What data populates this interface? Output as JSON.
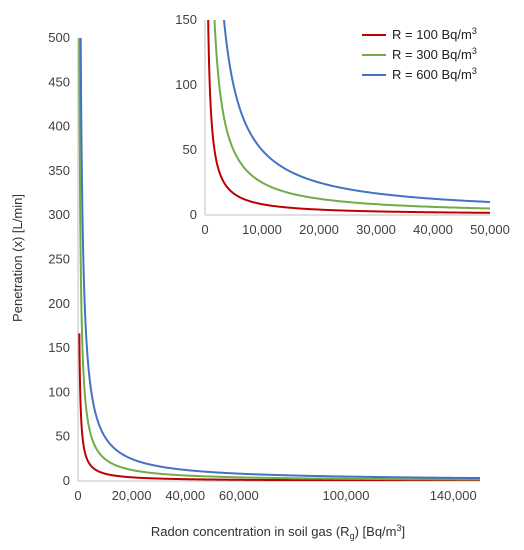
{
  "chart_data": [
    {
      "id": "main",
      "type": "line",
      "xlabel": "Radon concentration in soil gas (Rg) [Bq/m3]",
      "ylabel": "Penetration (x) [L/min]",
      "xlim": [
        0,
        150000
      ],
      "ylim": [
        0,
        500
      ],
      "x_ticks": [
        0,
        20000,
        40000,
        60000,
        100000,
        140000
      ],
      "x_tick_labels": [
        "0",
        "20,000",
        "40,000",
        "60,000",
        "100,000",
        "140,000"
      ],
      "y_ticks": [
        0,
        50,
        100,
        150,
        200,
        250,
        300,
        350,
        400,
        450,
        500
      ],
      "y_tick_labels": [
        "0",
        "50",
        "100",
        "150",
        "200",
        "250",
        "300",
        "350",
        "400",
        "450",
        "500"
      ],
      "grid": false,
      "series": [
        {
          "name": "R = 100 Bq/m3",
          "color": "#c00000",
          "k": 83333,
          "x_start": 500
        },
        {
          "name": "R = 300 Bq/m3",
          "color": "#70ad47",
          "k": 250000,
          "x_start": 500
        },
        {
          "name": "R = 600 Bq/m3",
          "color": "#4472c4",
          "k": 500000,
          "x_start": 1000
        }
      ]
    },
    {
      "id": "inset",
      "type": "line",
      "xlim": [
        0,
        50000
      ],
      "ylim": [
        0,
        150
      ],
      "x_ticks": [
        0,
        10000,
        20000,
        30000,
        40000,
        50000
      ],
      "x_tick_labels": [
        "0",
        "10,000",
        "20,000",
        "30,000",
        "40,000",
        "50,000"
      ],
      "y_ticks": [
        0,
        50,
        100,
        150
      ],
      "y_tick_labels": [
        "0",
        "50",
        "100",
        "150"
      ],
      "grid": false,
      "legend_position": "top-right",
      "series": [
        {
          "name": "R = 100 Bq/m3",
          "color": "#c00000",
          "k": 83333
        },
        {
          "name": "R = 300 Bq/m3",
          "color": "#70ad47",
          "k": 250000
        },
        {
          "name": "R = 600 Bq/m3",
          "color": "#4472c4",
          "k": 500000
        }
      ]
    }
  ],
  "legend": {
    "items": [
      {
        "prefix": "R = 100 Bq/m",
        "sup": "3",
        "color": "#c00000"
      },
      {
        "prefix": "R = 300 Bq/m",
        "sup": "3",
        "color": "#70ad47"
      },
      {
        "prefix": "R = 600 Bq/m",
        "sup": "3",
        "color": "#4472c4"
      }
    ]
  },
  "axis_titles": {
    "x_prefix": "Radon concentration in soil gas (R",
    "x_sub": "g",
    "x_mid": ") [Bq/m",
    "x_sup": "3",
    "x_suffix": "]",
    "y": "Penetration (x) [L/min]"
  }
}
